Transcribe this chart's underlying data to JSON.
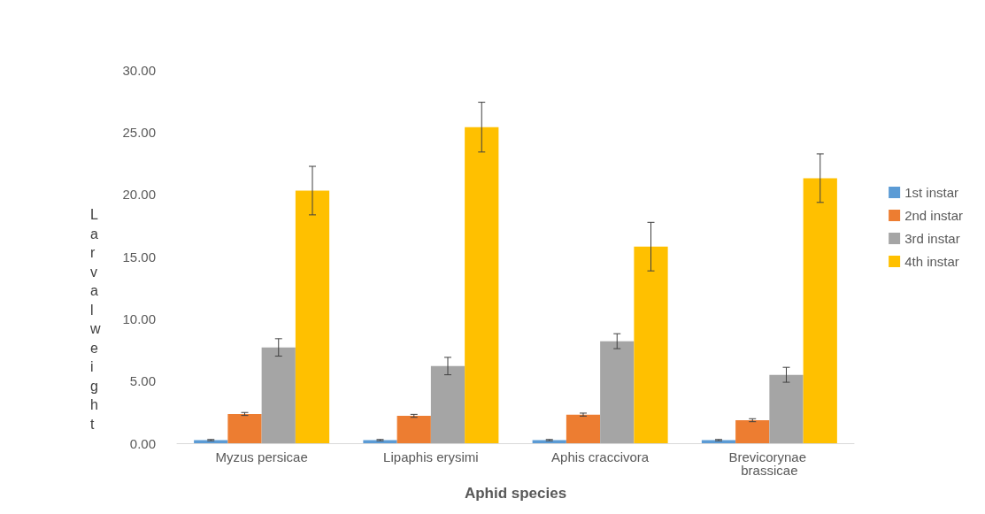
{
  "chart_data": {
    "type": "bar",
    "xlabel": "Aphid species",
    "ylabel": "Larval weight",
    "categories": [
      "Myzus persicae",
      "Lipaphis erysimi",
      "Aphis craccivora",
      "Brevicorynae brassicae"
    ],
    "series": [
      {
        "name": "1st instar",
        "color": "#5b9bd5",
        "values": [
          0.25,
          0.25,
          0.25,
          0.25
        ],
        "errors": [
          0.05,
          0.05,
          0.05,
          0.05
        ]
      },
      {
        "name": "2nd instar",
        "color": "#ed7d31",
        "values": [
          2.35,
          2.2,
          2.3,
          1.85
        ],
        "errors": [
          0.12,
          0.12,
          0.12,
          0.12
        ]
      },
      {
        "name": "3rd instar",
        "color": "#a5a5a5",
        "values": [
          7.7,
          6.2,
          8.2,
          5.5
        ],
        "errors": [
          0.7,
          0.7,
          0.6,
          0.6
        ]
      },
      {
        "name": "4th instar",
        "color": "#ffc000",
        "values": [
          20.3,
          25.4,
          15.8,
          21.3
        ],
        "errors": [
          1.95,
          2.0,
          1.95,
          1.95
        ]
      }
    ],
    "ylim": [
      0,
      30
    ],
    "yticks": [
      {
        "value": 0,
        "label": "0.00"
      },
      {
        "value": 5,
        "label": "5.00"
      },
      {
        "value": 10,
        "label": "10.00"
      },
      {
        "value": 15,
        "label": "15.00"
      },
      {
        "value": 20,
        "label": "20.00"
      },
      {
        "value": 25,
        "label": "25.00"
      },
      {
        "value": 30,
        "label": "30.00"
      }
    ],
    "grid": false,
    "legend": "right"
  }
}
